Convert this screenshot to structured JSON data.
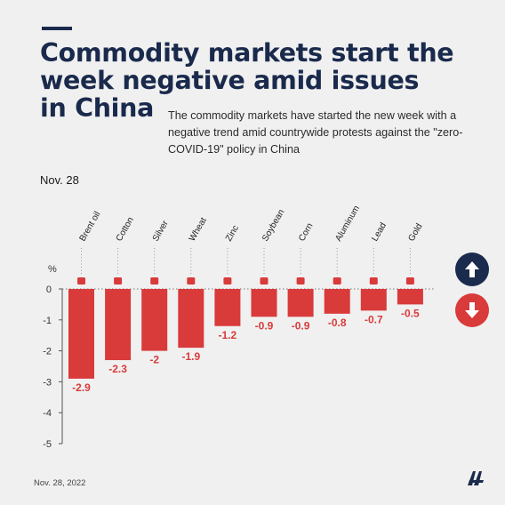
{
  "title_lines": [
    "Commodity markets start the",
    "week negative amid issues",
    "in China"
  ],
  "subtitle": "The commodity markets have started the new week with a negative trend amid countrywide protests against the \"zero-COVID-19\" policy in China",
  "date_label": "Nov. 28",
  "footer_date": "Nov. 28, 2022",
  "colors": {
    "bar": "#d93a3a",
    "navy": "#1b2b4d",
    "label": "#d93a3a",
    "axis": "#333333"
  },
  "icons": [
    "oil-drop-icon",
    "cotton-icon",
    "silver-bar-icon",
    "wheat-icon",
    "zinc-bar-icon",
    "soybean-icon",
    "corn-icon",
    "aluminum-bar-icon",
    "lead-bar-icon",
    "gold-bar-icon"
  ],
  "chart_data": {
    "type": "bar",
    "categories": [
      "Brent oil",
      "Cotton",
      "Silver",
      "Wheat",
      "Zinc",
      "Soybean",
      "Corn",
      "Aluminum",
      "Lead",
      "Gold"
    ],
    "values": [
      -2.9,
      -2.3,
      -2,
      -1.9,
      -1.2,
      -0.9,
      -0.9,
      -0.8,
      -0.7,
      -0.5
    ],
    "value_labels": [
      "-2.9",
      "-2.3",
      "-2",
      "-1.9",
      "-1.2",
      "-0.9",
      "-0.9",
      "-0.8",
      "-0.7",
      "-0.5"
    ],
    "ylabel": "%",
    "yticks": [
      "0",
      "-1",
      "-2",
      "-3",
      "-4",
      "-5"
    ],
    "ylim": [
      -5,
      0
    ],
    "grid": false
  }
}
